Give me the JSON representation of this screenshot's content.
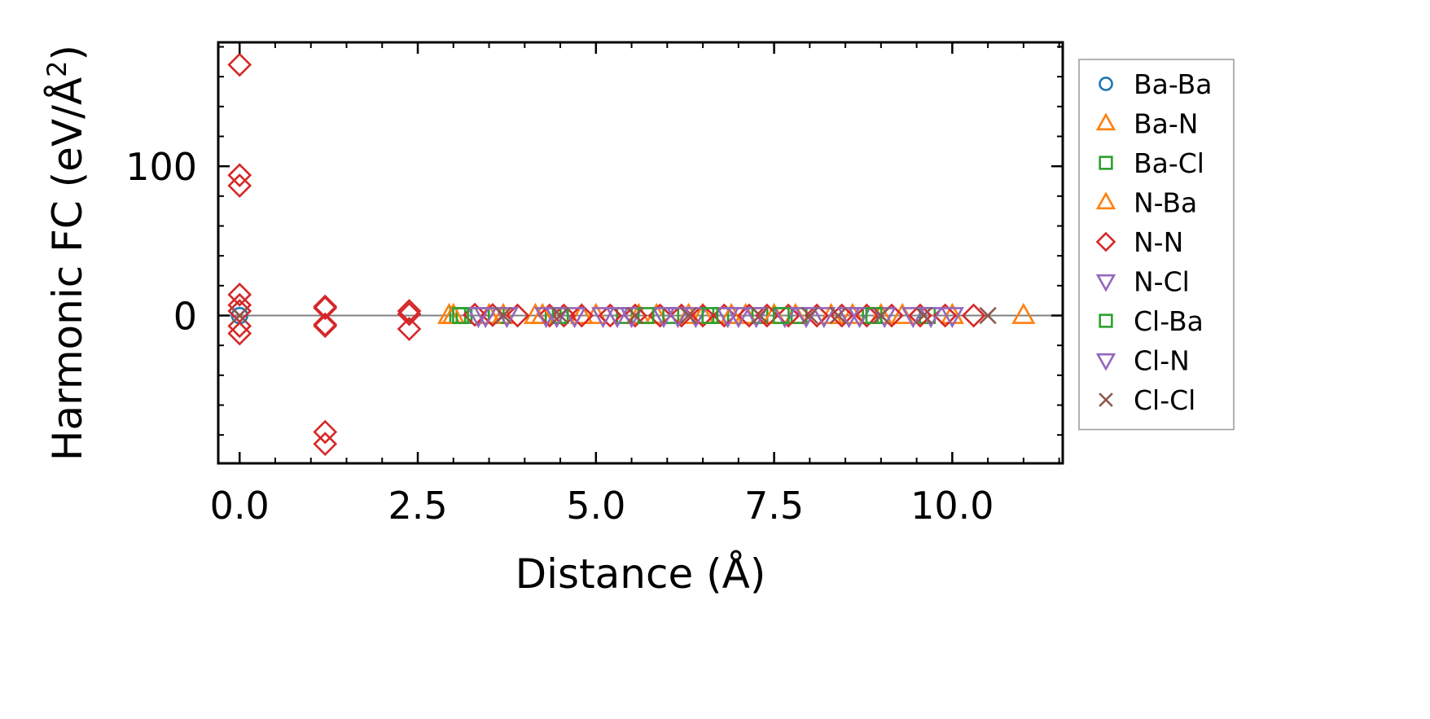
{
  "chart_data": {
    "type": "scatter",
    "xlabel": "Distance (Å)",
    "ylabel": "Harmonic FC (eV/Å²)",
    "ylabel_parts": {
      "base": "Harmonic FC (eV/Å",
      "sup": "2",
      "end": ")"
    },
    "xlim": [
      -0.3,
      11.55
    ],
    "ylim": [
      -99,
      183
    ],
    "xticks": [
      0.0,
      2.5,
      5.0,
      7.5,
      10.0
    ],
    "xtick_labels": [
      "0.0",
      "2.5",
      "5.0",
      "7.5",
      "10.0"
    ],
    "yticks": [
      0,
      100
    ],
    "ytick_labels": [
      "0",
      "100"
    ],
    "x_minor_step": 0.5,
    "y_minor_step": 20,
    "zero_line": true,
    "legend_position": "right-outside",
    "series": [
      {
        "name": "Ba-Ba",
        "marker": "circle",
        "color": "#1f77b4",
        "points": [
          [
            0.0,
            0.0
          ]
        ]
      },
      {
        "name": "Ba-N",
        "marker": "triangle-up",
        "color": "#ff7f0e",
        "points": [
          [
            2.94,
            0.0
          ],
          [
            3.7,
            0.0
          ],
          [
            4.15,
            0.0
          ],
          [
            5.0,
            0.0
          ],
          [
            5.85,
            0.0
          ],
          [
            6.5,
            0.0
          ],
          [
            7.1,
            0.0
          ],
          [
            7.8,
            0.0
          ],
          [
            8.6,
            0.0
          ],
          [
            9.3,
            0.0
          ],
          [
            10.0,
            0.0
          ],
          [
            11.0,
            0.0
          ]
        ]
      },
      {
        "name": "Ba-Cl",
        "marker": "square",
        "color": "#2ca02c",
        "points": [
          [
            3.06,
            0.0
          ],
          [
            3.15,
            0.0
          ],
          [
            3.6,
            0.0
          ],
          [
            4.4,
            0.0
          ],
          [
            5.4,
            0.0
          ],
          [
            6.05,
            0.0
          ],
          [
            6.75,
            0.0
          ],
          [
            7.3,
            0.0
          ],
          [
            7.85,
            0.0
          ],
          [
            8.85,
            0.0
          ],
          [
            9.65,
            0.0
          ]
        ]
      },
      {
        "name": "N-Ba",
        "marker": "triangle-up",
        "color": "#ff7f0e",
        "points": [
          [
            3.0,
            0.0
          ],
          [
            3.5,
            0.0
          ],
          [
            4.25,
            0.0
          ],
          [
            4.8,
            0.0
          ],
          [
            5.6,
            0.0
          ],
          [
            6.3,
            0.0
          ],
          [
            6.9,
            0.0
          ],
          [
            7.5,
            0.0
          ],
          [
            8.3,
            0.0
          ],
          [
            9.0,
            0.0
          ]
        ]
      },
      {
        "name": "N-N",
        "marker": "diamond",
        "color": "#d62728",
        "points": [
          [
            0.0,
            168
          ],
          [
            0.0,
            94
          ],
          [
            0.0,
            87
          ],
          [
            0.0,
            14
          ],
          [
            0.0,
            7
          ],
          [
            0.0,
            3
          ],
          [
            0.0,
            -7
          ],
          [
            0.0,
            -12
          ],
          [
            1.2,
            6
          ],
          [
            1.2,
            5
          ],
          [
            1.2,
            -6
          ],
          [
            1.2,
            -7
          ],
          [
            1.2,
            -78
          ],
          [
            1.2,
            -86
          ],
          [
            2.38,
            3
          ],
          [
            2.38,
            1
          ],
          [
            2.38,
            -9
          ],
          [
            3.3,
            0.5
          ],
          [
            3.55,
            0.3
          ],
          [
            3.9,
            0.0
          ],
          [
            4.35,
            0.0
          ],
          [
            4.55,
            0.0
          ],
          [
            4.8,
            0.0
          ],
          [
            5.2,
            0.0
          ],
          [
            5.55,
            0.0
          ],
          [
            5.9,
            0.0
          ],
          [
            6.2,
            0.0
          ],
          [
            6.5,
            0.0
          ],
          [
            6.8,
            0.0
          ],
          [
            7.15,
            0.0
          ],
          [
            7.4,
            0.0
          ],
          [
            7.7,
            0.0
          ],
          [
            8.1,
            0.0
          ],
          [
            8.45,
            0.0
          ],
          [
            8.8,
            0.0
          ],
          [
            9.15,
            0.0
          ],
          [
            9.55,
            0.0
          ],
          [
            9.9,
            0.0
          ],
          [
            10.3,
            0.0
          ]
        ]
      },
      {
        "name": "N-Cl",
        "marker": "triangle-down",
        "color": "#9467bd",
        "points": [
          [
            3.35,
            0.0
          ],
          [
            3.75,
            0.0
          ],
          [
            4.3,
            0.0
          ],
          [
            4.7,
            0.0
          ],
          [
            5.1,
            0.0
          ],
          [
            5.5,
            0.0
          ],
          [
            5.95,
            0.0
          ],
          [
            6.4,
            0.0
          ],
          [
            6.85,
            0.0
          ],
          [
            7.25,
            0.0
          ],
          [
            7.65,
            0.0
          ],
          [
            8.2,
            0.0
          ],
          [
            8.7,
            0.0
          ],
          [
            9.05,
            0.0
          ],
          [
            9.7,
            0.0
          ]
        ]
      },
      {
        "name": "Cl-Ba",
        "marker": "square",
        "color": "#2ca02c",
        "points": [
          [
            3.1,
            0.0
          ],
          [
            4.5,
            0.0
          ],
          [
            5.7,
            0.0
          ],
          [
            6.6,
            0.0
          ],
          [
            7.6,
            0.0
          ],
          [
            8.9,
            0.0
          ]
        ]
      },
      {
        "name": "Cl-N",
        "marker": "triangle-down",
        "color": "#9467bd",
        "points": [
          [
            3.45,
            0.0
          ],
          [
            4.45,
            0.0
          ],
          [
            5.3,
            0.0
          ],
          [
            6.15,
            0.0
          ],
          [
            7.0,
            0.0
          ],
          [
            7.95,
            0.0
          ],
          [
            8.55,
            0.0
          ],
          [
            9.45,
            0.0
          ],
          [
            10.0,
            0.0
          ]
        ]
      },
      {
        "name": "Cl-Cl",
        "marker": "x",
        "color": "#8c564b",
        "points": [
          [
            0.0,
            0.0
          ],
          [
            3.7,
            0.0
          ],
          [
            4.5,
            0.0
          ],
          [
            5.55,
            0.0
          ],
          [
            6.3,
            0.0
          ],
          [
            7.3,
            0.0
          ],
          [
            8.0,
            0.0
          ],
          [
            8.4,
            0.0
          ],
          [
            9.0,
            0.0
          ],
          [
            9.6,
            0.0
          ],
          [
            10.5,
            0.0
          ]
        ]
      }
    ]
  }
}
